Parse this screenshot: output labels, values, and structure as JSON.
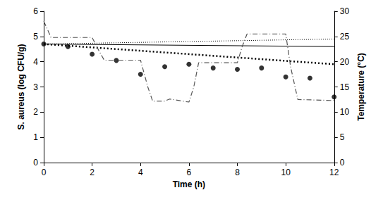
{
  "chart_data": {
    "type": "line",
    "xlabel": "Time (h)",
    "ylabel": "S. aureus (log CFU/g)",
    "y2label": "Temperature (°C)",
    "xlim": [
      0,
      12
    ],
    "xticks": [
      0,
      2,
      4,
      6,
      8,
      10,
      12
    ],
    "ylim": [
      0,
      6
    ],
    "yticks": [
      0,
      1,
      2,
      3,
      4,
      5,
      6
    ],
    "y2lim": [
      0,
      30
    ],
    "y2ticks": [
      0,
      5,
      10,
      15,
      20,
      25,
      30
    ],
    "grid": false,
    "series": [
      {
        "type": "scatter",
        "color": "#000000",
        "marker": "circle",
        "x": [
          0,
          1,
          2,
          3,
          4,
          5,
          6,
          7,
          8,
          9,
          10,
          11,
          12
        ],
        "values": [
          4.7,
          4.6,
          4.3,
          4.05,
          3.5,
          3.8,
          3.9,
          3.75,
          3.7,
          3.75,
          3.4,
          3.35,
          2.6
        ]
      },
      {
        "type": "line",
        "color": "#000000",
        "line_style": "solid",
        "x": [
          0,
          12
        ],
        "values": [
          4.7,
          4.6
        ]
      },
      {
        "type": "line",
        "color": "#000000",
        "line_style": "dotted",
        "x": [
          0,
          12
        ],
        "values": [
          4.7,
          4.9
        ]
      },
      {
        "type": "line",
        "color": "#000000",
        "line_style": "bolddotted",
        "x": [
          0,
          12
        ],
        "values": [
          4.7,
          3.9
        ]
      },
      {
        "type": "line",
        "color": "#555555",
        "line_style": "dashdot",
        "axis": "y2",
        "x": [
          0,
          0.1,
          0.3,
          2,
          2.3,
          2.5,
          4,
          4.3,
          4.5,
          5,
          5.2,
          6,
          6.2,
          6.4,
          8,
          8.2,
          8.4,
          10,
          10.2,
          10.5,
          12
        ],
        "values": [
          28,
          27,
          24.8,
          24.8,
          22,
          20.3,
          20.3,
          15,
          12.2,
          12.2,
          12.6,
          12,
          15,
          19.8,
          19.8,
          23,
          25.5,
          25.5,
          19,
          12.5,
          12.3
        ]
      }
    ]
  }
}
